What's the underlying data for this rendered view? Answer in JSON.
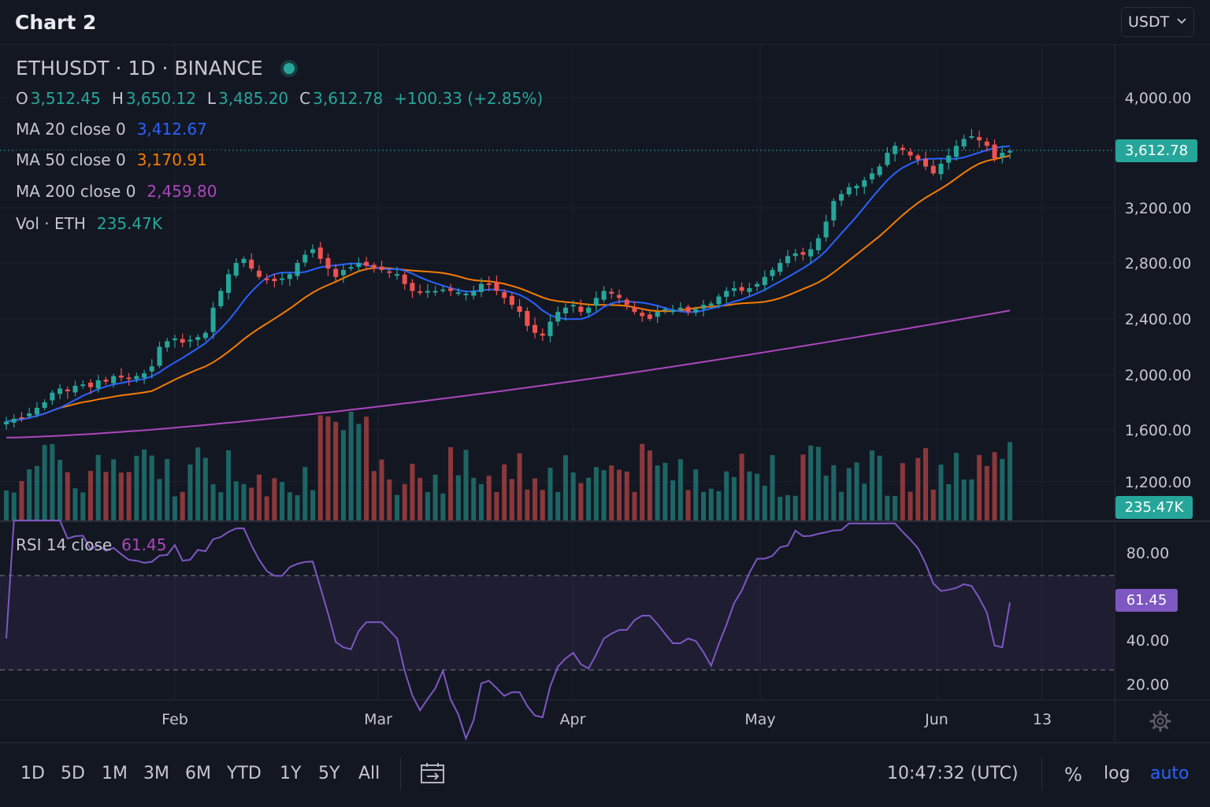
{
  "header": {
    "title": "Chart 2",
    "currency": "USDT"
  },
  "legend": {
    "symbol": "ETHUSDT · 1D · BINANCE",
    "ohlc": [
      {
        "k": "O",
        "v": "3,512.45"
      },
      {
        "k": "H",
        "v": "3,650.12"
      },
      {
        "k": "L",
        "v": "3,485.20"
      },
      {
        "k": "C",
        "v": "3,612.78"
      },
      {
        "k": "",
        "v": "+100.33 (+2.85%)"
      }
    ],
    "indicators": [
      {
        "label": "MA 20 close 0",
        "value": "3,412.67",
        "color": "#2962ff"
      },
      {
        "label": "MA 50 close 0",
        "value": "3,170.91",
        "color": "#f57c00"
      },
      {
        "label": "MA 200 close 0",
        "value": "2,459.80",
        "color": "#ab47bc"
      },
      {
        "label": "Vol · ETH",
        "value": "235.47K",
        "color": "#26a69a"
      }
    ]
  },
  "price_axis": [
    "4,000.00",
    "3,200.00",
    "2,800.00",
    "2,400.00",
    "2,000.00",
    "1,600.00",
    "1,200.00"
  ],
  "last_price_tag": "3,612.78",
  "volume_tag": "235.47K",
  "rsi": {
    "label": "RSI 14 close",
    "value": "61.45",
    "axis": [
      "80.00",
      "40.00",
      "20.00"
    ],
    "tag": "61.45"
  },
  "time_axis": [
    "Feb",
    "Mar",
    "Apr",
    "May",
    "Jun",
    "13"
  ],
  "bottom": {
    "ranges": [
      "1D",
      "5D",
      "1M",
      "3M",
      "6M",
      "YTD",
      "1Y",
      "5Y",
      "All"
    ],
    "clock": "10:47:32 (UTC)",
    "percent": "%",
    "log": "log",
    "auto": "auto"
  },
  "colors": {
    "up": "#26a69a",
    "down": "#ef5350",
    "ma20": "#2962ff",
    "ma50": "#f57c00",
    "ma200": "#ab47bc",
    "rsi": "#7e57c2",
    "bg": "#131722",
    "accent": "#2962ff"
  },
  "chart_data": {
    "type": "candlestick",
    "title": "ETHUSDT · 1D · BINANCE",
    "xlabel": "",
    "ylabel": "",
    "ylim": [
      1000,
      4400
    ],
    "x_ticks": [
      "Feb",
      "Mar",
      "Apr",
      "May",
      "Jun",
      "13"
    ],
    "close_series": [
      1660,
      1680,
      1690,
      1720,
      1760,
      1800,
      1870,
      1900,
      1880,
      1920,
      1930,
      1910,
      1960,
      1950,
      1990,
      1980,
      1970,
      1990,
      2010,
      2060,
      2200,
      2240,
      2260,
      2230,
      2250,
      2270,
      2300,
      2480,
      2600,
      2720,
      2800,
      2830,
      2760,
      2700,
      2680,
      2670,
      2690,
      2720,
      2800,
      2860,
      2900,
      2830,
      2760,
      2700,
      2750,
      2770,
      2800,
      2780,
      2760,
      2750,
      2730,
      2720,
      2650,
      2600,
      2590,
      2600,
      2600,
      2610,
      2600,
      2590,
      2580,
      2600,
      2650,
      2650,
      2600,
      2550,
      2500,
      2450,
      2350,
      2300,
      2280,
      2380,
      2450,
      2480,
      2500,
      2450,
      2480,
      2550,
      2600,
      2580,
      2550,
      2500,
      2450,
      2420,
      2400,
      2450,
      2470,
      2460,
      2480,
      2450,
      2470,
      2500,
      2510,
      2560,
      2600,
      2620,
      2600,
      2620,
      2650,
      2700,
      2750,
      2800,
      2850,
      2870,
      2860,
      2900,
      2980,
      3100,
      3250,
      3300,
      3350,
      3360,
      3400,
      3450,
      3500,
      3600,
      3650,
      3620,
      3580,
      3550,
      3500,
      3450,
      3520,
      3580,
      3650,
      3700,
      3720,
      3690,
      3650,
      3560,
      3600,
      3612.78
    ],
    "series": [
      {
        "name": "MA 20 close 0",
        "last": 3412.67
      },
      {
        "name": "MA 50 close 0",
        "last": 3170.91
      },
      {
        "name": "MA 200 close 0",
        "last": 2459.8
      },
      {
        "name": "Vol · ETH",
        "last": "235.47K"
      },
      {
        "name": "RSI 14 close",
        "last": 61.45
      }
    ]
  }
}
